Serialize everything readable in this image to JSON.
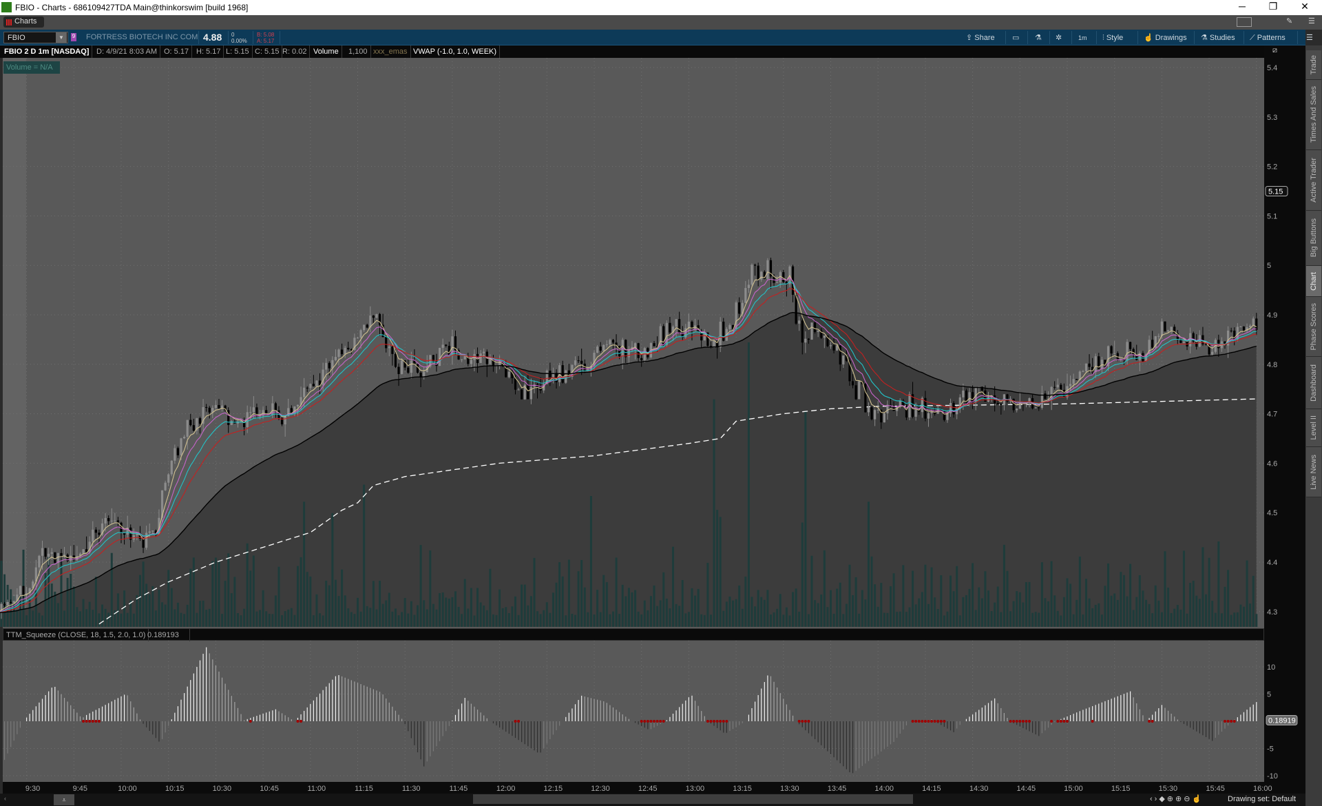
{
  "window": {
    "title": "FBIO - Charts - 686109427TDA Main@thinkorswim [build 1968]",
    "minimize": "─",
    "restore": "❐",
    "close": "✕"
  },
  "tabs": {
    "charts": "Charts"
  },
  "symbol_bar": {
    "symbol": "FBIO",
    "badge": "9",
    "company": "FORTRESS BIOTECH INC COM",
    "last": "4.88",
    "change": "0",
    "change_pct": "0.00%",
    "bid": "B: 5.08",
    "ask": "A: 5.17",
    "buttons": {
      "share": "Share",
      "timeframe": "1m",
      "style": "Style",
      "drawings": "Drawings",
      "studies": "Studies",
      "patterns": "Patterns"
    }
  },
  "info_bar": {
    "title": "FBIO 2 D 1m [NASDAQ]",
    "date": "D: 4/9/21 8:03 AM",
    "open": "O: 5.17",
    "high": "H: 5.17",
    "low": "L: 5.15",
    "close": "C: 5.15",
    "range": "R: 0.02",
    "volume_label": "Volume",
    "volume_value": "1,100",
    "emas": "xxx_emas",
    "vwap": "VWAP (-1.0, 1.0, WEEK)"
  },
  "volume_badge": "Volume = N/A",
  "squeeze_header": {
    "label": "TTM_Squeeze (CLOSE, 18, 1.5, 2.0, 1.0)",
    "value": "0.189193"
  },
  "right_tabs": [
    {
      "label": "Trade"
    },
    {
      "label": "Times And Sales"
    },
    {
      "label": "Active Trader"
    },
    {
      "label": "Big Buttons"
    },
    {
      "label": "Chart",
      "selected": true
    },
    {
      "label": "Phase Scores"
    },
    {
      "label": "Dashboard"
    },
    {
      "label": "Level II"
    },
    {
      "label": "Live News"
    }
  ],
  "bottom": {
    "drawing_set": "Drawing set: Default"
  },
  "colors": {
    "ema_1": "#d0c090",
    "ema_2": "#c464c8",
    "ema_3": "#22c4c8",
    "ema_4": "#c42020",
    "ema_5": "#000000",
    "volume": "#1e3c3b",
    "up_candle": "#8c8c8c",
    "down_candle": "#000000",
    "vwap": "#ffffff",
    "squeeze_dot": "#a00000"
  },
  "chart_data": [
    {
      "type": "candlestick",
      "symbol": "FBIO",
      "aggregation": "1m",
      "close_path": [
        [
          "9:21",
          4.317
        ],
        [
          "9:30",
          4.34
        ],
        [
          "9:35",
          4.41
        ],
        [
          "9:45",
          4.4
        ],
        [
          "9:55",
          4.49
        ],
        [
          "10:05",
          4.445
        ],
        [
          "10:10",
          4.445
        ],
        [
          "10:15",
          4.58
        ],
        [
          "10:20",
          4.667
        ],
        [
          "10:30",
          4.72
        ],
        [
          "10:35",
          4.667
        ],
        [
          "10:45",
          4.72
        ],
        [
          "10:50",
          4.69
        ],
        [
          "11:00",
          4.75
        ],
        [
          "11:10",
          4.82
        ],
        [
          "11:15",
          4.855
        ],
        [
          "11:20",
          4.9
        ],
        [
          "11:27",
          4.8
        ],
        [
          "11:35",
          4.785
        ],
        [
          "11:45",
          4.837
        ],
        [
          "11:50",
          4.81
        ],
        [
          "12:00",
          4.81
        ],
        [
          "12:05",
          4.75
        ],
        [
          "12:10",
          4.735
        ],
        [
          "12:15",
          4.77
        ],
        [
          "12:25",
          4.795
        ],
        [
          "12:35",
          4.837
        ],
        [
          "12:45",
          4.82
        ],
        [
          "12:55",
          4.88
        ],
        [
          "13:05",
          4.855
        ],
        [
          "13:12",
          4.865
        ],
        [
          "13:20",
          4.99
        ],
        [
          "13:27",
          4.99
        ],
        [
          "13:32",
          4.975
        ],
        [
          "13:35",
          4.87
        ],
        [
          "13:45",
          4.837
        ],
        [
          "13:55",
          4.735
        ],
        [
          "14:00",
          4.7
        ],
        [
          "14:10",
          4.72
        ],
        [
          "14:20",
          4.685
        ],
        [
          "14:25",
          4.727
        ],
        [
          "14:35",
          4.745
        ],
        [
          "14:45",
          4.72
        ],
        [
          "14:55",
          4.735
        ],
        [
          "15:05",
          4.78
        ],
        [
          "15:15",
          4.83
        ],
        [
          "15:25",
          4.82
        ],
        [
          "15:30",
          4.87
        ],
        [
          "15:40",
          4.845
        ],
        [
          "15:45",
          4.837
        ],
        [
          "15:55",
          4.863
        ],
        [
          "16:00",
          4.88
        ]
      ],
      "vwap": [
        [
          "9:53",
          4.275
        ],
        [
          "10:05",
          4.326
        ],
        [
          "10:15",
          4.36
        ],
        [
          "10:30",
          4.4
        ],
        [
          "10:45",
          4.43
        ],
        [
          "11:00",
          4.46
        ],
        [
          "11:10",
          4.505
        ],
        [
          "11:15",
          4.52
        ],
        [
          "11:20",
          4.555
        ],
        [
          "11:30",
          4.573
        ],
        [
          "12:00",
          4.6
        ],
        [
          "12:30",
          4.615
        ],
        [
          "13:00",
          4.64
        ],
        [
          "13:10",
          4.65
        ],
        [
          "13:15",
          4.685
        ],
        [
          "13:30",
          4.7
        ],
        [
          "13:45",
          4.71
        ],
        [
          "14:00",
          4.715
        ],
        [
          "15:00",
          4.72
        ],
        [
          "16:00",
          4.73
        ]
      ],
      "volume_spikes_fraction": [
        [
          "10:58",
          0.22
        ],
        [
          "11:07",
          0.2
        ],
        [
          "11:17",
          0.25
        ],
        [
          "12:29",
          0.23
        ],
        [
          "13:08",
          0.4
        ],
        [
          "13:19",
          0.5
        ],
        [
          "13:37",
          0.38
        ],
        [
          "13:57",
          0.22
        ],
        [
          "15:43",
          0.14
        ]
      ],
      "y_ticks": [
        "5.4",
        "5.3",
        "5.2",
        "5.1",
        "5",
        "4.9",
        "4.8",
        "4.7",
        "4.6",
        "4.5",
        "4.4",
        "4.3"
      ],
      "ylim": [
        4.3,
        5.4
      ],
      "x_ticks": [
        "9:30",
        "9:45",
        "10:00",
        "10:15",
        "10:30",
        "10:45",
        "11:00",
        "11:15",
        "11:30",
        "11:45",
        "12:00",
        "12:15",
        "12:30",
        "12:45",
        "13:00",
        "13:15",
        "13:30",
        "13:45",
        "14:00",
        "14:15",
        "14:30",
        "14:45",
        "15:00",
        "15:15",
        "15:30",
        "15:45",
        "16:00"
      ],
      "last_price_marker": "5.15",
      "grid": true
    },
    {
      "type": "bar",
      "name": "TTM_Squeeze",
      "histogram": [
        [
          -7,
          -7.1
        ],
        [
          -1,
          0
        ],
        [
          8.6,
          6.6
        ],
        [
          17.6,
          0.5
        ],
        [
          18.5,
          1.0
        ],
        [
          31.7,
          5.1
        ],
        [
          36.3,
          0
        ],
        [
          42.4,
          -4
        ],
        [
          45.7,
          0
        ],
        [
          57,
          13.6
        ],
        [
          69,
          0.2
        ],
        [
          79,
          2.2
        ],
        [
          85,
          0
        ],
        [
          98.5,
          8.6
        ],
        [
          112.5,
          5.3
        ],
        [
          119.6,
          0
        ],
        [
          126,
          -8.3
        ],
        [
          134.4,
          -0.5
        ],
        [
          139,
          4.3
        ],
        [
          147,
          0
        ],
        [
          162.7,
          -6
        ],
        [
          170,
          0
        ],
        [
          176,
          4.7
        ],
        [
          183.5,
          3.6
        ],
        [
          192,
          0
        ],
        [
          197.5,
          -1.6
        ],
        [
          202.7,
          0
        ],
        [
          210.8,
          4.9
        ],
        [
          216,
          0
        ],
        [
          221.5,
          -2.3
        ],
        [
          228,
          0
        ],
        [
          235.4,
          8.9
        ],
        [
          244,
          0
        ],
        [
          261.6,
          -9.7
        ],
        [
          275,
          -3.8
        ],
        [
          280,
          0
        ],
        [
          287,
          0.3
        ],
        [
          294,
          -2
        ],
        [
          297,
          0
        ],
        [
          307,
          4.2
        ],
        [
          311.7,
          0
        ],
        [
          321,
          -2.7
        ],
        [
          326.3,
          0
        ],
        [
          335,
          2.1
        ],
        [
          350,
          5.5
        ],
        [
          355,
          0
        ],
        [
          360,
          3.0
        ],
        [
          365.6,
          0
        ],
        [
          376,
          -3.6
        ],
        [
          382.4,
          0
        ],
        [
          391,
          4.0
        ]
      ],
      "histogram_x_unit": "minutes after 9:30",
      "squeeze_on_ranges": [
        [
          "9:48",
          "9:53"
        ],
        [
          "10:41",
          "10:41"
        ],
        [
          "10:56",
          "10:57"
        ],
        [
          "12:05",
          "12:06"
        ],
        [
          "12:45",
          "12:52"
        ],
        [
          "13:06",
          "13:12"
        ],
        [
          "13:35",
          "13:38"
        ],
        [
          "14:11",
          "14:21"
        ],
        [
          "14:42",
          "14:48"
        ],
        [
          "14:55",
          "14:55"
        ],
        [
          "14:57",
          "15:00"
        ],
        [
          "15:08",
          "15:08"
        ],
        [
          "15:26",
          "15:27"
        ],
        [
          "15:50",
          "15:53"
        ]
      ],
      "y_ticks": [
        "10",
        "5",
        "-5",
        "-10"
      ],
      "ylim": [
        -12,
        14
      ],
      "current_value": "0.18919"
    }
  ]
}
